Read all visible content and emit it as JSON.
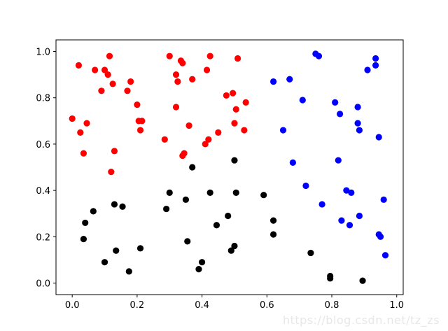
{
  "chart_data": {
    "type": "scatter",
    "xlim": [
      -0.05,
      1.02
    ],
    "ylim": [
      -0.05,
      1.05
    ],
    "xticks": [
      "0.0",
      "0.2",
      "0.4",
      "0.6",
      "0.8",
      "1.0"
    ],
    "yticks": [
      "0.0",
      "0.2",
      "0.4",
      "0.6",
      "0.8",
      "1.0"
    ],
    "grid": false,
    "series": [
      {
        "color": "#ff0000",
        "points": [
          [
            0.0,
            0.71
          ],
          [
            0.02,
            0.94
          ],
          [
            0.025,
            0.65
          ],
          [
            0.035,
            0.56
          ],
          [
            0.045,
            0.69
          ],
          [
            0.07,
            0.92
          ],
          [
            0.09,
            0.83
          ],
          [
            0.1,
            0.92
          ],
          [
            0.11,
            0.9
          ],
          [
            0.115,
            0.98
          ],
          [
            0.12,
            0.48
          ],
          [
            0.125,
            0.86
          ],
          [
            0.13,
            0.57
          ],
          [
            0.17,
            0.83
          ],
          [
            0.18,
            0.87
          ],
          [
            0.2,
            0.77
          ],
          [
            0.205,
            0.7
          ],
          [
            0.21,
            0.66
          ],
          [
            0.215,
            0.7
          ],
          [
            0.285,
            0.62
          ],
          [
            0.3,
            0.98
          ],
          [
            0.32,
            0.9
          ],
          [
            0.32,
            0.76
          ],
          [
            0.325,
            0.87
          ],
          [
            0.335,
            0.96
          ],
          [
            0.34,
            0.55
          ],
          [
            0.34,
            0.95
          ],
          [
            0.345,
            0.56
          ],
          [
            0.36,
            0.68
          ],
          [
            0.37,
            0.88
          ],
          [
            0.41,
            0.6
          ],
          [
            0.415,
            0.92
          ],
          [
            0.42,
            0.62
          ],
          [
            0.425,
            0.98
          ],
          [
            0.45,
            0.65
          ],
          [
            0.475,
            0.81
          ],
          [
            0.495,
            0.82
          ],
          [
            0.5,
            0.69
          ],
          [
            0.505,
            0.75
          ],
          [
            0.51,
            0.97
          ],
          [
            0.53,
            0.66
          ],
          [
            0.535,
            0.78
          ]
        ]
      },
      {
        "color": "#0000ff",
        "points": [
          [
            0.62,
            0.87
          ],
          [
            0.65,
            0.66
          ],
          [
            0.67,
            0.88
          ],
          [
            0.68,
            0.52
          ],
          [
            0.71,
            0.79
          ],
          [
            0.72,
            0.42
          ],
          [
            0.75,
            0.99
          ],
          [
            0.76,
            0.98
          ],
          [
            0.77,
            0.34
          ],
          [
            0.81,
            0.78
          ],
          [
            0.82,
            0.53
          ],
          [
            0.825,
            0.73
          ],
          [
            0.83,
            0.27
          ],
          [
            0.845,
            0.4
          ],
          [
            0.855,
            0.25
          ],
          [
            0.86,
            0.39
          ],
          [
            0.88,
            0.76
          ],
          [
            0.88,
            0.69
          ],
          [
            0.885,
            0.66
          ],
          [
            0.885,
            0.29
          ],
          [
            0.91,
            0.92
          ],
          [
            0.935,
            0.94
          ],
          [
            0.935,
            0.97
          ],
          [
            0.945,
            0.63
          ],
          [
            0.945,
            0.21
          ],
          [
            0.95,
            0.2
          ],
          [
            0.96,
            0.36
          ],
          [
            0.965,
            0.12
          ]
        ]
      },
      {
        "color": "#000000",
        "points": [
          [
            0.035,
            0.19
          ],
          [
            0.04,
            0.26
          ],
          [
            0.065,
            0.31
          ],
          [
            0.1,
            0.09
          ],
          [
            0.13,
            0.34
          ],
          [
            0.135,
            0.14
          ],
          [
            0.155,
            0.33
          ],
          [
            0.175,
            0.05
          ],
          [
            0.21,
            0.15
          ],
          [
            0.29,
            0.32
          ],
          [
            0.3,
            0.39
          ],
          [
            0.35,
            0.36
          ],
          [
            0.355,
            0.18
          ],
          [
            0.37,
            0.5
          ],
          [
            0.39,
            0.06
          ],
          [
            0.4,
            0.09
          ],
          [
            0.425,
            0.39
          ],
          [
            0.445,
            0.25
          ],
          [
            0.48,
            0.29
          ],
          [
            0.49,
            0.14
          ],
          [
            0.5,
            0.16
          ],
          [
            0.5,
            0.53
          ],
          [
            0.505,
            0.39
          ],
          [
            0.59,
            0.38
          ],
          [
            0.62,
            0.27
          ],
          [
            0.62,
            0.21
          ],
          [
            0.735,
            0.13
          ],
          [
            0.795,
            0.03
          ],
          [
            0.795,
            0.02
          ],
          [
            0.895,
            0.01
          ]
        ]
      }
    ]
  },
  "watermark": "https://blog.csdn.net/tz_zs"
}
